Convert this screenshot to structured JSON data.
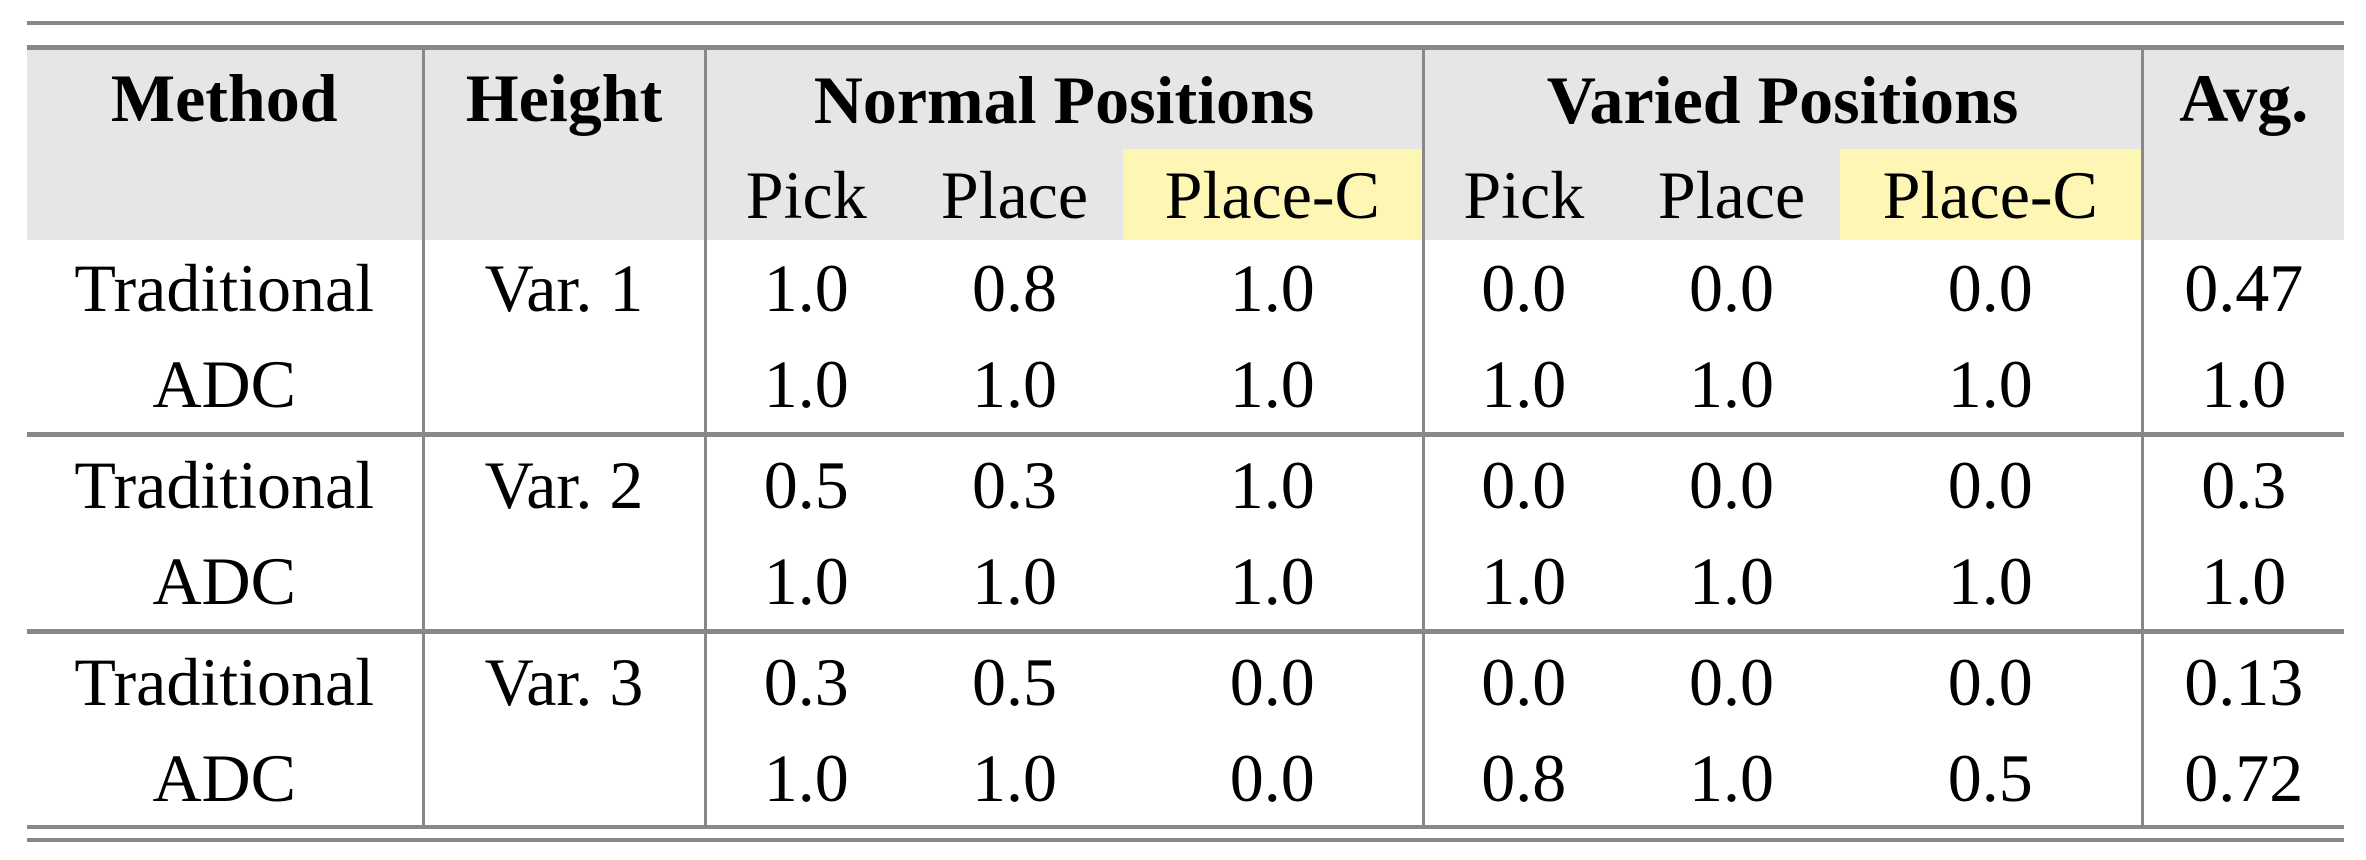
{
  "header": {
    "method": "Method",
    "height": "Height",
    "normal": "Normal Positions",
    "varied": "Varied Positions",
    "avg": "Avg.",
    "sub": [
      "Pick",
      "Place",
      "Place-C",
      "Pick",
      "Place",
      "Place-C"
    ]
  },
  "highlight_color": "#fdf6b5",
  "header_bg": "#e6e6e6",
  "rows": [
    {
      "method": "Traditional",
      "height": "Var. 1",
      "values": [
        "1.0",
        "0.8",
        "1.0",
        "0.0",
        "0.0",
        "0.0"
      ],
      "avg": "0.47"
    },
    {
      "method": "ADC",
      "height": "",
      "values": [
        "1.0",
        "1.0",
        "1.0",
        "1.0",
        "1.0",
        "1.0"
      ],
      "avg": "1.0"
    },
    {
      "method": "Traditional",
      "height": "Var. 2",
      "values": [
        "0.5",
        "0.3",
        "1.0",
        "0.0",
        "0.0",
        "0.0"
      ],
      "avg": "0.3"
    },
    {
      "method": "ADC",
      "height": "",
      "values": [
        "1.0",
        "1.0",
        "1.0",
        "1.0",
        "1.0",
        "1.0"
      ],
      "avg": "1.0"
    },
    {
      "method": "Traditional",
      "height": "Var. 3",
      "values": [
        "0.3",
        "0.5",
        "0.0",
        "0.0",
        "0.0",
        "0.0"
      ],
      "avg": "0.13"
    },
    {
      "method": "ADC",
      "height": "",
      "values": [
        "1.0",
        "1.0",
        "0.0",
        "0.8",
        "1.0",
        "0.5"
      ],
      "avg": "0.72"
    }
  ]
}
